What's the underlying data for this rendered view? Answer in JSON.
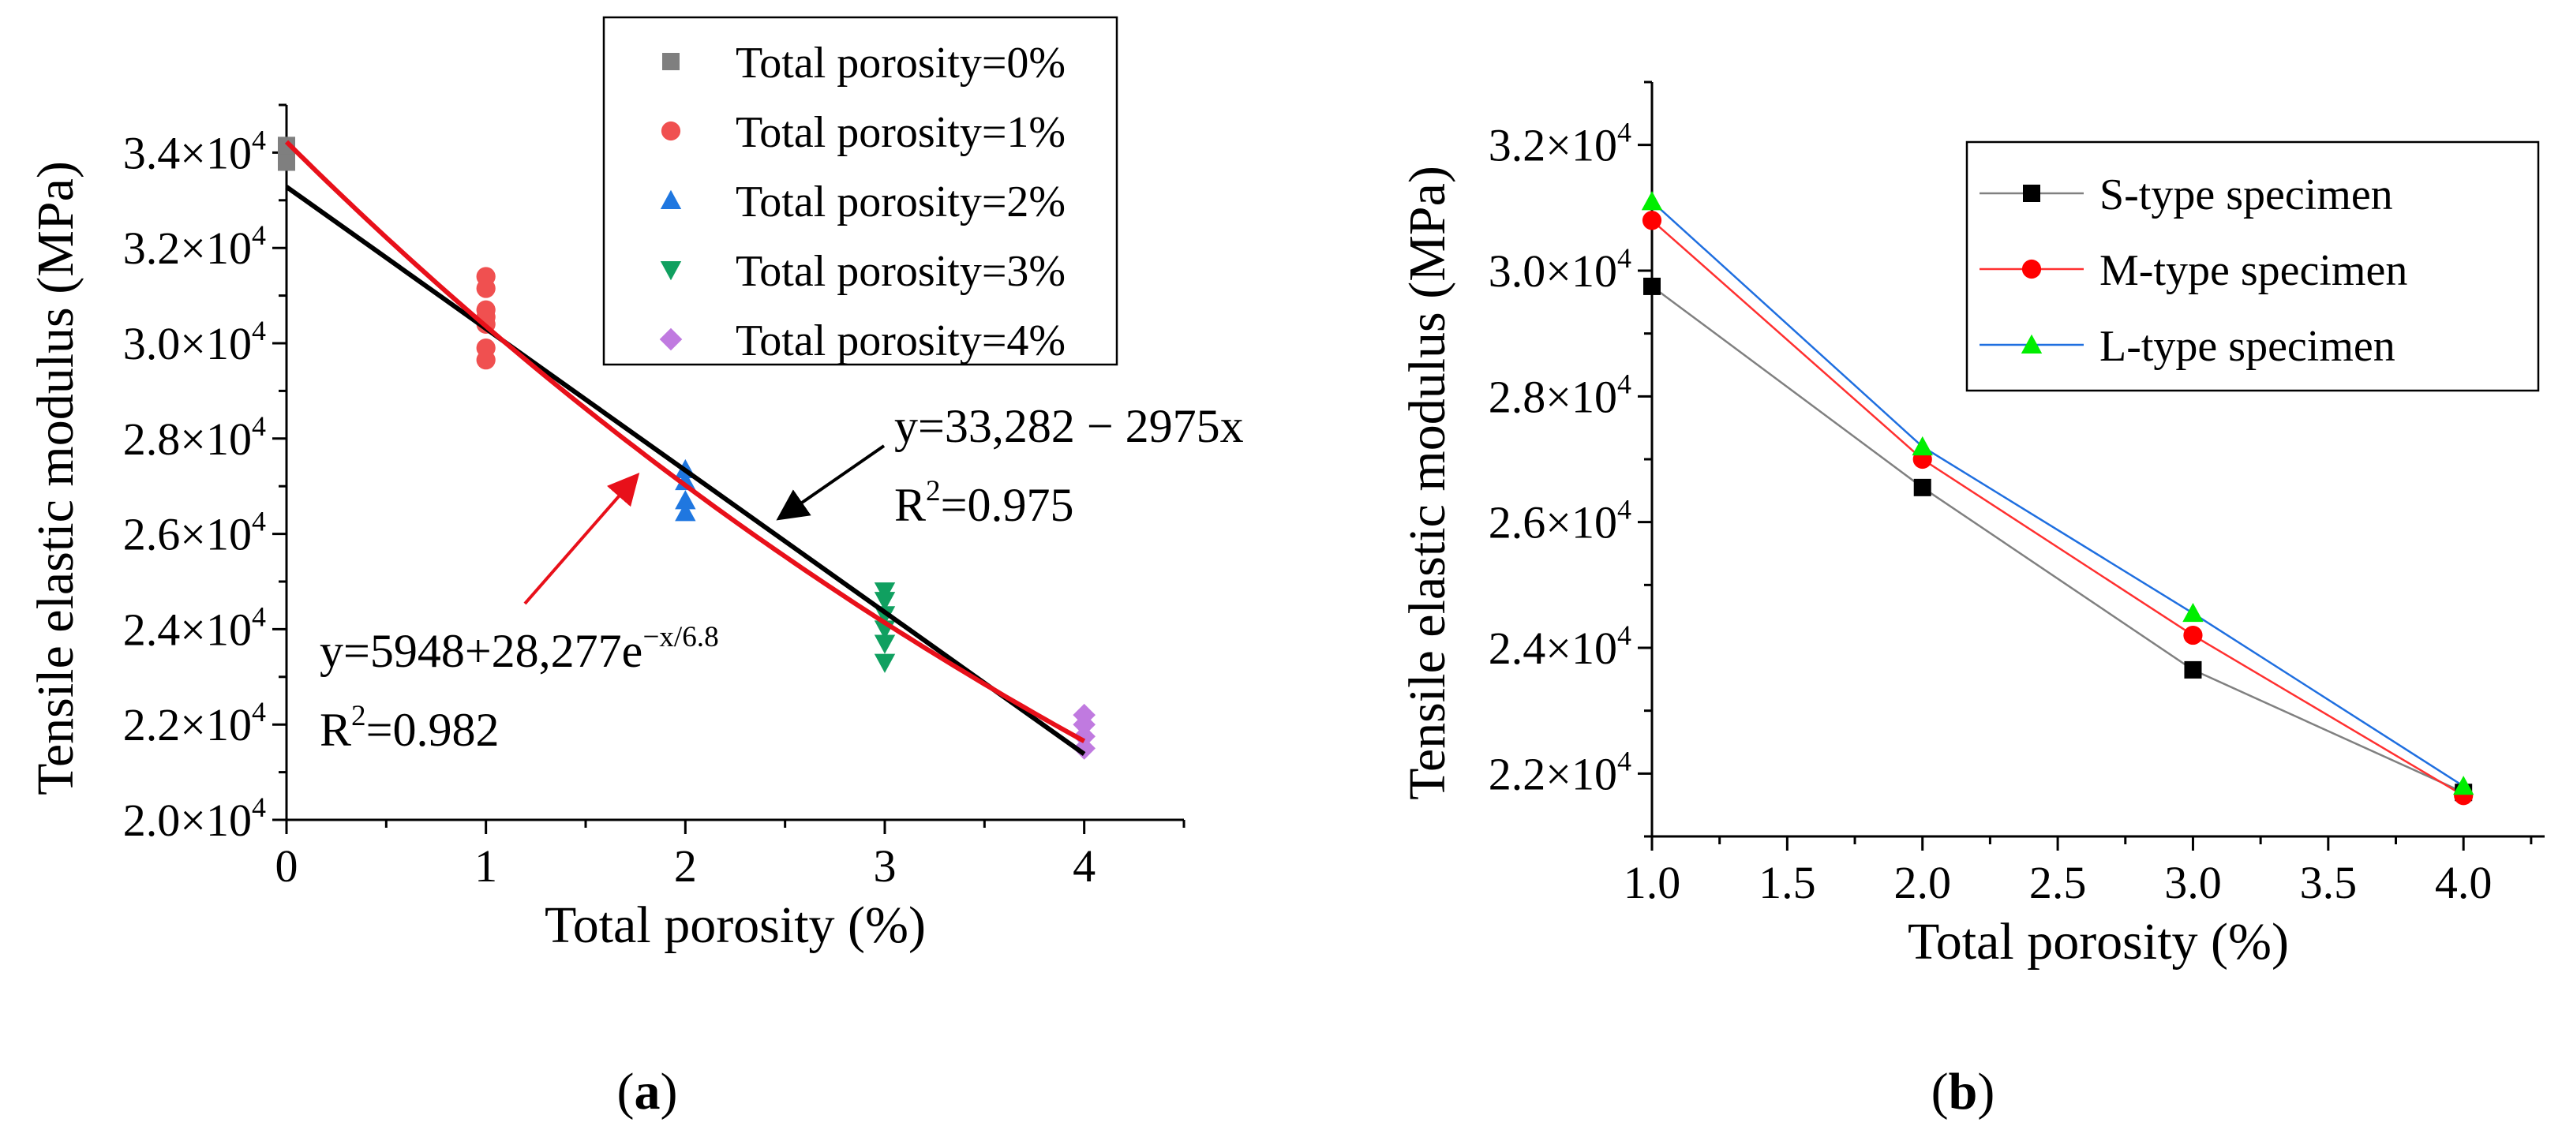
{
  "chart_data": [
    {
      "type": "scatter",
      "panel_label": "a",
      "xlabel": "Total porosity (%)",
      "ylabel": "Tensile elastic modulus (MPa)",
      "xlim": [
        0,
        4.5
      ],
      "ylim": [
        20000,
        35000
      ],
      "xticks": [
        {
          "value": 0,
          "label": "0"
        },
        {
          "value": 1,
          "label": "1"
        },
        {
          "value": 2,
          "label": "2"
        },
        {
          "value": 3,
          "label": "3"
        },
        {
          "value": 4,
          "label": "4"
        }
      ],
      "yticks": [
        {
          "value": 20000,
          "mant": "2.0",
          "exp": "4"
        },
        {
          "value": 22000,
          "mant": "2.2",
          "exp": "4"
        },
        {
          "value": 24000,
          "mant": "2.4",
          "exp": "4"
        },
        {
          "value": 26000,
          "mant": "2.6",
          "exp": "4"
        },
        {
          "value": 28000,
          "mant": "2.8",
          "exp": "4"
        },
        {
          "value": 30000,
          "mant": "3.0",
          "exp": "4"
        },
        {
          "value": 32000,
          "mant": "3.2",
          "exp": "4"
        },
        {
          "value": 34000,
          "mant": "3.4",
          "exp": "4"
        }
      ],
      "x_sep": "×10",
      "series": [
        {
          "name": "Total porosity=0%",
          "marker": "square",
          "color": "#7f7f7f",
          "points": [
            [
              0,
              33800
            ],
            [
              0,
              34000
            ],
            [
              0,
              34150
            ]
          ]
        },
        {
          "name": "Total porosity=1%",
          "marker": "circle",
          "color": "#f05050",
          "points": [
            [
              1,
              31400
            ],
            [
              1,
              31150
            ],
            [
              1,
              30700
            ],
            [
              1,
              30550
            ],
            [
              1,
              30400
            ],
            [
              1,
              29900
            ],
            [
              1,
              29650
            ]
          ]
        },
        {
          "name": "Total porosity=2%",
          "marker": "triangle-up",
          "color": "#1f77e0",
          "points": [
            [
              2,
              27350
            ],
            [
              2,
              27100
            ],
            [
              2,
              26700
            ],
            [
              2,
              26450
            ]
          ]
        },
        {
          "name": "Total porosity=3%",
          "marker": "triangle-down",
          "color": "#10a060",
          "points": [
            [
              3,
              24800
            ],
            [
              3,
              24600
            ],
            [
              3,
              24300
            ],
            [
              3,
              24000
            ],
            [
              3,
              23700
            ],
            [
              3,
              23300
            ]
          ]
        },
        {
          "name": "Total porosity=4%",
          "marker": "diamond",
          "color": "#c07ae0",
          "points": [
            [
              4,
              22200
            ],
            [
              4,
              22000
            ],
            [
              4,
              21750
            ],
            [
              4,
              21500
            ]
          ]
        }
      ],
      "fits": [
        {
          "name": "linear",
          "color": "#000000",
          "slope": -2975,
          "intercept": 33282,
          "x_range": [
            0,
            4
          ]
        },
        {
          "name": "exponential",
          "color": "#e8101a",
          "a": 5948,
          "b": 28277,
          "t": 6.8,
          "x_range": [
            0,
            4
          ]
        }
      ],
      "annotations": {
        "linear_eq": "y=33,282 − 2975x",
        "linear_r2_prefix": "R",
        "linear_r2_exp": "2",
        "linear_r2_val": "=0.975",
        "exp_eq_base": "y=5948+28,277e",
        "exp_eq_exp": "−x/6.8",
        "exp_r2_prefix": "R",
        "exp_r2_exp": "2",
        "exp_r2_val": "=0.982"
      }
    },
    {
      "type": "line",
      "panel_label": "b",
      "xlabel": "Total porosity (%)",
      "ylabel": "Tensile elastic modulus (MPa)",
      "xlim": [
        1.0,
        4.3
      ],
      "ylim": [
        21000,
        33000
      ],
      "xticks": [
        {
          "value": 1.0,
          "label": "1.0"
        },
        {
          "value": 1.5,
          "label": "1.5"
        },
        {
          "value": 2.0,
          "label": "2.0"
        },
        {
          "value": 2.5,
          "label": "2.5"
        },
        {
          "value": 3.0,
          "label": "3.0"
        },
        {
          "value": 3.5,
          "label": "3.5"
        },
        {
          "value": 4.0,
          "label": "4.0"
        }
      ],
      "yticks": [
        {
          "value": 22000,
          "mant": "2.2",
          "exp": "4"
        },
        {
          "value": 24000,
          "mant": "2.4",
          "exp": "4"
        },
        {
          "value": 26000,
          "mant": "2.6",
          "exp": "4"
        },
        {
          "value": 28000,
          "mant": "2.8",
          "exp": "4"
        },
        {
          "value": 30000,
          "mant": "3.0",
          "exp": "4"
        },
        {
          "value": 32000,
          "mant": "3.2",
          "exp": "4"
        }
      ],
      "x": [
        1.0,
        2.0,
        3.0,
        4.0
      ],
      "series": [
        {
          "name": "S-type specimen",
          "marker": "square",
          "color": "#000000",
          "line_color": "#808080",
          "values": [
            29750,
            26550,
            23650,
            21700
          ]
        },
        {
          "name": "M-type specimen",
          "marker": "circle",
          "color": "#ff0000",
          "line_color": "#ff3030",
          "values": [
            30800,
            27000,
            24200,
            21650
          ]
        },
        {
          "name": "L-type specimen",
          "marker": "triangle-up",
          "color": "#00ee00",
          "line_color": "#1f6fe0",
          "values": [
            31100,
            27200,
            24550,
            21800
          ]
        }
      ]
    }
  ]
}
